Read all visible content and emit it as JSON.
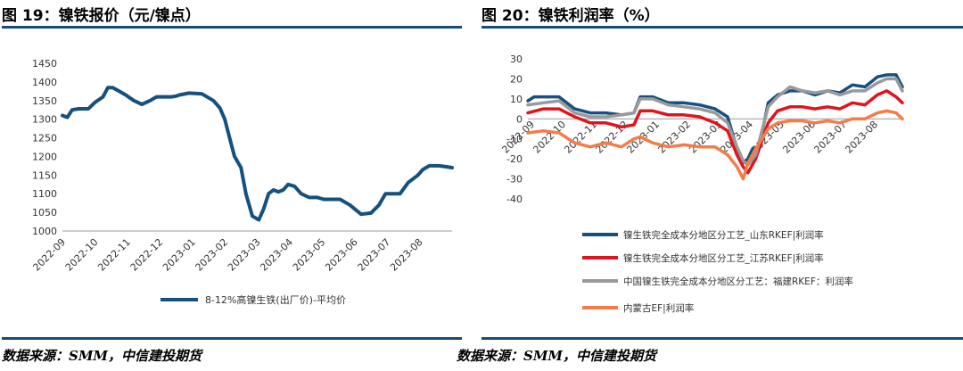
{
  "left_title": "图 19：镍铁报价（元/镍点）",
  "right_title": "图 20：镍铁利润率（%）",
  "left_source": "数据来源：SMM，中信建投期货",
  "right_source": "数据来源：SMM，中信建投期货",
  "chart_data": [
    {
      "type": "line",
      "title": "镍铁报价（元/镍点）",
      "ylim": [
        1000,
        1450
      ],
      "yticks": [
        1000,
        1050,
        1100,
        1150,
        1200,
        1250,
        1300,
        1350,
        1400,
        1450
      ],
      "xlim": [
        0,
        12
      ],
      "xtick_labels": [
        "2022-09",
        "2022-10",
        "2022-11",
        "2022-12",
        "2023-01",
        "2023-02",
        "2023-03",
        "2023-04",
        "2023-05",
        "2023-06",
        "2023-07",
        "2023-08"
      ],
      "series": [
        {
          "name": "8-12%高镍生铁(出厂价)-平均价",
          "color": "#15507e",
          "x": [
            0,
            0.15,
            0.3,
            0.5,
            0.8,
            1.0,
            1.25,
            1.4,
            1.55,
            1.75,
            1.95,
            2.2,
            2.45,
            2.7,
            2.9,
            3.15,
            3.35,
            3.5,
            3.6,
            3.9,
            4.3,
            4.65,
            4.85,
            5.0,
            5.15,
            5.3,
            5.5,
            5.65,
            5.85,
            6.05,
            6.2,
            6.35,
            6.5,
            6.65,
            6.8,
            6.95,
            7.15,
            7.35,
            7.6,
            7.85,
            8.05,
            8.3,
            8.55,
            8.85,
            9.2,
            9.5,
            9.75,
            9.95,
            10.2,
            10.4,
            10.65,
            10.95,
            11.1,
            11.3,
            11.6,
            11.85,
            12.0
          ],
          "values": [
            1310,
            1305,
            1325,
            1328,
            1328,
            1345,
            1360,
            1385,
            1385,
            1375,
            1365,
            1350,
            1340,
            1350,
            1360,
            1360,
            1360,
            1362,
            1365,
            1370,
            1368,
            1350,
            1330,
            1300,
            1250,
            1200,
            1170,
            1100,
            1040,
            1030,
            1060,
            1100,
            1110,
            1105,
            1110,
            1125,
            1120,
            1100,
            1090,
            1090,
            1085,
            1085,
            1085,
            1070,
            1045,
            1048,
            1070,
            1100,
            1100,
            1100,
            1130,
            1150,
            1165,
            1175,
            1175,
            1172,
            1170
          ]
        }
      ]
    },
    {
      "type": "line",
      "title": "镍铁利润率（%）",
      "ylim": [
        -40,
        30
      ],
      "yticks": [
        -40,
        -30,
        -20,
        -10,
        0,
        10,
        20,
        30
      ],
      "xlim": [
        0,
        12
      ],
      "xtick_labels": [
        "2022-09",
        "2022-10",
        "2022-11",
        "2022-12",
        "2023-01",
        "2023-02",
        "2023-03",
        "2023-04",
        "2023-05",
        "2023-06",
        "2023-07",
        "2023-08"
      ],
      "legend": "bottom",
      "series": [
        {
          "name": "镍生铁完全成本分地区分工艺_山东RKEF|利润率",
          "color": "#15507e",
          "x": [
            0,
            0.2,
            0.5,
            1,
            1.5,
            2,
            2.5,
            3,
            3.4,
            3.6,
            4,
            4.5,
            5,
            5.5,
            6,
            6.4,
            6.7,
            6.9,
            7.05,
            7.2,
            7.4,
            7.7,
            8,
            8.4,
            8.8,
            9.2,
            9.6,
            10,
            10.4,
            10.8,
            11.2,
            11.5,
            11.8,
            12
          ],
          "values": [
            9,
            11,
            11,
            11,
            5,
            3,
            3,
            2,
            3,
            11,
            11,
            8,
            8,
            7,
            5,
            1,
            -15,
            -22,
            -20,
            -15,
            -15,
            8,
            12,
            14,
            14,
            12,
            14,
            13,
            17,
            16,
            21,
            22,
            22,
            16
          ]
        },
        {
          "name": "镍生铁完全成本分地区分工艺_江苏RKEF|利润率",
          "color": "#e0141e",
          "x": [
            0,
            0.5,
            1,
            1.5,
            2,
            2.5,
            3,
            3.4,
            3.6,
            4,
            4.5,
            5,
            5.5,
            6,
            6.4,
            6.7,
            6.9,
            7.05,
            7.3,
            7.7,
            8,
            8.4,
            8.8,
            9.2,
            9.6,
            10,
            10.4,
            10.8,
            11.2,
            11.5,
            11.8,
            12
          ],
          "values": [
            3,
            5,
            5,
            1,
            -2,
            -2,
            -4,
            -3,
            4,
            4,
            2,
            2,
            1,
            -2,
            -6,
            -18,
            -24,
            -27,
            -20,
            -2,
            4,
            6,
            6,
            5,
            6,
            5,
            8,
            7,
            12,
            14,
            11,
            8
          ]
        },
        {
          "name": "中国镍生铁完全成本分地区分工艺：福建RKEF：利润率",
          "color": "#9a9a9a",
          "x": [
            0,
            0.5,
            1,
            1.5,
            2,
            2.5,
            3,
            3.4,
            3.6,
            4,
            4.5,
            5,
            5.5,
            6,
            6.4,
            6.7,
            6.9,
            7.05,
            7.3,
            7.7,
            8,
            8.4,
            8.8,
            9.2,
            9.6,
            10,
            10.4,
            10.8,
            11.2,
            11.5,
            11.8,
            12
          ],
          "values": [
            7,
            8,
            9,
            3,
            1,
            1,
            2,
            3,
            10,
            10,
            7,
            6,
            5,
            3,
            -2,
            -14,
            -21,
            -23,
            -18,
            6,
            11,
            16,
            14,
            13,
            14,
            12,
            14,
            14,
            18,
            20,
            20,
            14
          ]
        },
        {
          "name": "内蒙古EF|利润率",
          "color": "#f47c4a",
          "x": [
            0,
            0.5,
            1,
            1.5,
            2,
            2.5,
            3,
            3.4,
            3.6,
            4,
            4.5,
            5,
            5.5,
            6,
            6.4,
            6.7,
            6.9,
            7.05,
            7.3,
            7.7,
            8,
            8.4,
            8.8,
            9.2,
            9.6,
            10,
            10.4,
            10.8,
            11.2,
            11.5,
            11.8,
            12
          ],
          "values": [
            -7,
            -6,
            -7,
            -12,
            -14,
            -12,
            -14,
            -10,
            -9,
            -12,
            -14,
            -13,
            -14,
            -14,
            -18,
            -24,
            -30,
            -22,
            -15,
            -5,
            -2,
            -1,
            -1,
            -2,
            -1,
            -2,
            0,
            0,
            3,
            4,
            3,
            0
          ]
        }
      ]
    }
  ]
}
